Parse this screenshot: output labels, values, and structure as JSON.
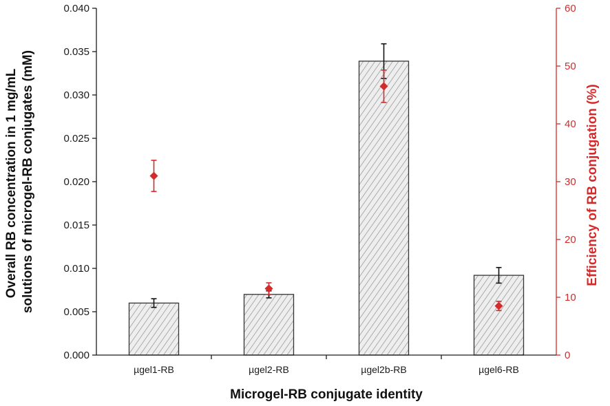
{
  "chart_data": {
    "type": "bar",
    "categories": [
      "µgel1-RB",
      "µgel2-RB",
      "µgel2b-RB",
      "µgel6-RB"
    ],
    "series": [
      {
        "type": "bar",
        "axis": "left",
        "values": [
          0.006,
          0.007,
          0.0339,
          0.0092
        ],
        "errors": [
          0.0005,
          0.0004,
          0.002,
          0.0009
        ]
      },
      {
        "type": "scatter",
        "axis": "right",
        "values": [
          31.0,
          11.5,
          46.5,
          8.5
        ],
        "errors": [
          2.7,
          1.0,
          2.8,
          0.8
        ]
      }
    ],
    "xlabel": "Microgel-RB conjugate identity",
    "ylabel": "Overall RB concentration in 1 mg/mL solutions of microgel-RB conjugates (mM)",
    "ylabel_lines": [
      "Overall RB concentration in 1 mg/mL",
      "solutions of microgel-RB conjugates (mM)"
    ],
    "y2label": "Efficiency of RB conjugation (%)",
    "ylim": [
      0,
      0.04
    ],
    "y2lim": [
      0,
      60
    ],
    "yticks": [
      "0.000",
      "0.005",
      "0.010",
      "0.015",
      "0.020",
      "0.025",
      "0.030",
      "0.035",
      "0.040"
    ],
    "y2ticks": [
      "0",
      "10",
      "20",
      "30",
      "40",
      "50",
      "60"
    ],
    "grid": false,
    "legend": "none",
    "colors": {
      "bar_fill": "#eeeeee",
      "bar_hatch": "#9a9a9a",
      "bar_edge": "#333333",
      "marker": "#d42a2a",
      "left_axis": "#1a1a1a",
      "right_axis": "#d42a2a"
    }
  }
}
